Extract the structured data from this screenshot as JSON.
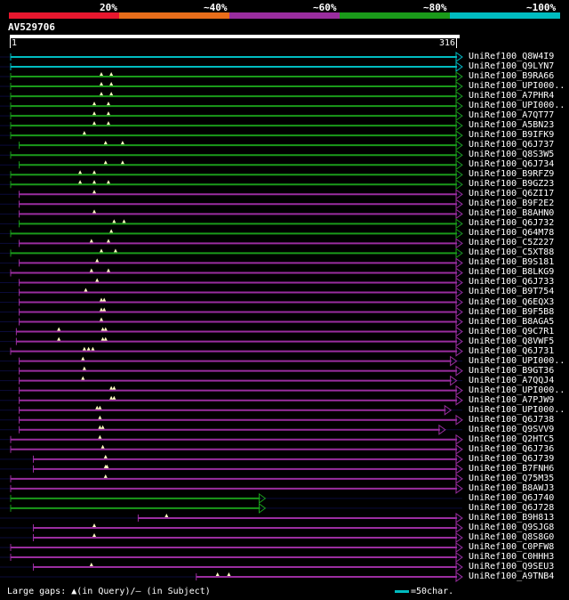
{
  "identity_scale": [
    {
      "label": "20%",
      "color": "#e8172e"
    },
    {
      "label": "~40%",
      "color": "#e86d1a"
    },
    {
      "label": "~60%",
      "color": "#9a2d9f"
    },
    {
      "label": "~80%",
      "color": "#1a9a1a"
    },
    {
      "label": "~100%",
      "color": "#00bcc0"
    }
  ],
  "query": {
    "name": "AV529706",
    "start": "1",
    "end": "316"
  },
  "hits": [
    {
      "id": "UniRef100_Q8W4I9",
      "color": "#00bcc0",
      "start": 1,
      "end": 316,
      "gaps": []
    },
    {
      "id": "UniRef100_Q9LYN7",
      "color": "#00bcc0",
      "start": 1,
      "end": 316,
      "gaps": []
    },
    {
      "id": "UniRef100_B9RA66",
      "color": "#1a9a1a",
      "start": 1,
      "end": 316,
      "gaps": [
        65,
        72
      ]
    },
    {
      "id": "UniRef100_UPI000..",
      "color": "#1a9a1a",
      "start": 1,
      "end": 316,
      "gaps": [
        65,
        72
      ]
    },
    {
      "id": "UniRef100_A7PHR4",
      "color": "#1a9a1a",
      "start": 1,
      "end": 316,
      "gaps": [
        65,
        72
      ]
    },
    {
      "id": "UniRef100_UPI000..",
      "color": "#1a9a1a",
      "start": 1,
      "end": 316,
      "gaps": [
        60,
        70
      ]
    },
    {
      "id": "UniRef100_A7QT77",
      "color": "#1a9a1a",
      "start": 1,
      "end": 316,
      "gaps": [
        60,
        70
      ]
    },
    {
      "id": "UniRef100_A5BN23",
      "color": "#1a9a1a",
      "start": 1,
      "end": 316,
      "gaps": [
        60,
        70
      ]
    },
    {
      "id": "UniRef100_B9IFK9",
      "color": "#1a9a1a",
      "start": 1,
      "end": 316,
      "gaps": [
        53
      ]
    },
    {
      "id": "UniRef100_Q6J737",
      "color": "#1a9a1a",
      "start": 7,
      "end": 316,
      "gaps": [
        68,
        80
      ]
    },
    {
      "id": "UniRef100_Q8S3W5",
      "color": "#1a9a1a",
      "start": 1,
      "end": 316,
      "gaps": []
    },
    {
      "id": "UniRef100_Q6J734",
      "color": "#1a9a1a",
      "start": 7,
      "end": 316,
      "gaps": [
        68,
        80
      ]
    },
    {
      "id": "UniRef100_B9RFZ9",
      "color": "#1a9a1a",
      "start": 1,
      "end": 316,
      "gaps": [
        50,
        60
      ]
    },
    {
      "id": "UniRef100_B9GZ23",
      "color": "#1a9a1a",
      "start": 1,
      "end": 316,
      "gaps": [
        50,
        60,
        70
      ]
    },
    {
      "id": "UniRef100_Q6ZI17",
      "color": "#9a2d9f",
      "start": 7,
      "end": 316,
      "gaps": [
        60
      ]
    },
    {
      "id": "UniRef100_B9F2E2",
      "color": "#9a2d9f",
      "start": 7,
      "end": 316,
      "gaps": []
    },
    {
      "id": "UniRef100_B8AHN0",
      "color": "#9a2d9f",
      "start": 7,
      "end": 316,
      "gaps": [
        60
      ]
    },
    {
      "id": "UniRef100_Q6J732",
      "color": "#1a9a1a",
      "start": 7,
      "end": 316,
      "gaps": [
        74,
        81
      ]
    },
    {
      "id": "UniRef100_Q64M78",
      "color": "#1a9a1a",
      "start": 1,
      "end": 316,
      "gaps": [
        72
      ]
    },
    {
      "id": "UniRef100_C5Z227",
      "color": "#9a2d9f",
      "start": 7,
      "end": 316,
      "gaps": [
        58,
        70
      ]
    },
    {
      "id": "UniRef100_C5XT88",
      "color": "#1a9a1a",
      "start": 1,
      "end": 316,
      "gaps": [
        65,
        75
      ]
    },
    {
      "id": "UniRef100_B9S181",
      "color": "#9a2d9f",
      "start": 7,
      "end": 316,
      "gaps": [
        62
      ]
    },
    {
      "id": "UniRef100_B8LKG9",
      "color": "#9a2d9f",
      "start": 1,
      "end": 316,
      "gaps": [
        58,
        70
      ]
    },
    {
      "id": "UniRef100_Q6J733",
      "color": "#9a2d9f",
      "start": 7,
      "end": 316,
      "gaps": [
        62
      ]
    },
    {
      "id": "UniRef100_B9T754",
      "color": "#9a2d9f",
      "start": 7,
      "end": 316,
      "gaps": [
        54
      ]
    },
    {
      "id": "UniRef100_Q6EQX3",
      "color": "#9a2d9f",
      "start": 7,
      "end": 316,
      "gaps": [
        65,
        67
      ]
    },
    {
      "id": "UniRef100_B9F5B8",
      "color": "#9a2d9f",
      "start": 7,
      "end": 316,
      "gaps": [
        65,
        67
      ]
    },
    {
      "id": "UniRef100_B8AGA5",
      "color": "#9a2d9f",
      "start": 7,
      "end": 316,
      "gaps": [
        65
      ]
    },
    {
      "id": "UniRef100_Q9C7R1",
      "color": "#9a2d9f",
      "start": 5,
      "end": 316,
      "gaps": [
        35,
        66,
        68
      ]
    },
    {
      "id": "UniRef100_Q8VWF5",
      "color": "#9a2d9f",
      "start": 5,
      "end": 316,
      "gaps": [
        35,
        66,
        68
      ]
    },
    {
      "id": "UniRef100_Q6J731",
      "color": "#9a2d9f",
      "start": 1,
      "end": 316,
      "gaps": [
        53,
        56,
        59
      ]
    },
    {
      "id": "UniRef100_UPI000..",
      "color": "#9a2d9f",
      "start": 7,
      "end": 312,
      "gaps": [
        52
      ]
    },
    {
      "id": "UniRef100_B9GT36",
      "color": "#9a2d9f",
      "start": 7,
      "end": 316,
      "gaps": [
        53
      ]
    },
    {
      "id": "UniRef100_A7QQJ4",
      "color": "#9a2d9f",
      "start": 7,
      "end": 312,
      "gaps": [
        52
      ]
    },
    {
      "id": "UniRef100_UPI000..",
      "color": "#9a2d9f",
      "start": 7,
      "end": 316,
      "gaps": [
        72,
        74
      ]
    },
    {
      "id": "UniRef100_A7PJW9",
      "color": "#9a2d9f",
      "start": 7,
      "end": 316,
      "gaps": [
        72,
        74
      ]
    },
    {
      "id": "UniRef100_UPI000..",
      "color": "#9a2d9f",
      "start": 7,
      "end": 308,
      "gaps": [
        62,
        64
      ]
    },
    {
      "id": "UniRef100_Q6J738",
      "color": "#9a2d9f",
      "start": 7,
      "end": 316,
      "gaps": [
        64
      ]
    },
    {
      "id": "UniRef100_Q9SVV9",
      "color": "#9a2d9f",
      "start": 7,
      "end": 304,
      "gaps": [
        64,
        66
      ]
    },
    {
      "id": "UniRef100_Q2HTC5",
      "color": "#9a2d9f",
      "start": 1,
      "end": 316,
      "gaps": [
        64
      ]
    },
    {
      "id": "UniRef100_Q6J736",
      "color": "#9a2d9f",
      "start": 1,
      "end": 316,
      "gaps": [
        66
      ]
    },
    {
      "id": "UniRef100_Q6J739",
      "color": "#9a2d9f",
      "start": 17,
      "end": 316,
      "gaps": [
        68
      ]
    },
    {
      "id": "UniRef100_B7FNH6",
      "color": "#9a2d9f",
      "start": 17,
      "end": 316,
      "gaps": [
        68,
        69
      ]
    },
    {
      "id": "UniRef100_Q75M35",
      "color": "#9a2d9f",
      "start": 1,
      "end": 316,
      "gaps": [
        68
      ]
    },
    {
      "id": "UniRef100_B8AWJ3",
      "color": "#9a2d9f",
      "start": 1,
      "end": 316,
      "gaps": []
    },
    {
      "id": "UniRef100_Q6J740",
      "color": "#1a9a1a",
      "start": 1,
      "end": 177,
      "gaps": []
    },
    {
      "id": "UniRef100_Q6J728",
      "color": "#1a9a1a",
      "start": 1,
      "end": 177,
      "gaps": []
    },
    {
      "id": "UniRef100_B9H813",
      "color": "#9a2d9f",
      "start": 91,
      "end": 316,
      "gaps": [
        111
      ]
    },
    {
      "id": "UniRef100_Q9SJG8",
      "color": "#9a2d9f",
      "start": 17,
      "end": 316,
      "gaps": [
        60
      ]
    },
    {
      "id": "UniRef100_Q8S8G0",
      "color": "#9a2d9f",
      "start": 17,
      "end": 316,
      "gaps": [
        60
      ]
    },
    {
      "id": "UniRef100_C0PFW8",
      "color": "#9a2d9f",
      "start": 1,
      "end": 316,
      "gaps": []
    },
    {
      "id": "UniRef100_C0HHH3",
      "color": "#9a2d9f",
      "start": 1,
      "end": 316,
      "gaps": []
    },
    {
      "id": "UniRef100_Q9SEU3",
      "color": "#9a2d9f",
      "start": 17,
      "end": 316,
      "gaps": [
        58
      ]
    },
    {
      "id": "UniRef100_A9TNB4",
      "color": "#9a2d9f",
      "start": 132,
      "end": 316,
      "gaps": [
        147,
        155
      ]
    }
  ],
  "legend": {
    "text": "Large gaps: ▲(in Query)/— (in Subject)"
  },
  "scale_key": {
    "text": "=50char."
  }
}
